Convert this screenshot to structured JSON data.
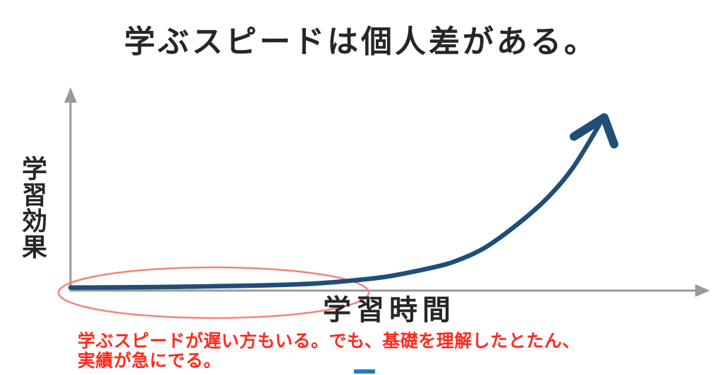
{
  "title": "学ぶスピードは個人差がある。",
  "chart_data": {
    "type": "line",
    "title": "学ぶスピードは個人差がある。",
    "xlabel": "学習時間",
    "ylabel": "学習効果",
    "axis_ticks": "none",
    "grid": false,
    "legend": "none",
    "xlim": [
      0,
      1
    ],
    "ylim": [
      0,
      1
    ],
    "x": [
      0,
      0.08,
      0.16,
      0.24,
      0.32,
      0.4,
      0.47,
      0.54,
      0.6,
      0.66,
      0.72,
      0.78,
      0.84,
      0.9,
      0.95,
      1.0
    ],
    "series": [
      {
        "name": "learning-effect-curve",
        "values": [
          0.005,
          0.006,
          0.008,
          0.011,
          0.015,
          0.021,
          0.03,
          0.048,
          0.07,
          0.105,
          0.15,
          0.23,
          0.36,
          0.52,
          0.7,
          0.95
        ]
      }
    ],
    "annotations": [
      {
        "type": "ellipse-highlight",
        "x_range": [
          0,
          0.56
        ],
        "note": "flat initial region circled in red"
      },
      {
        "type": "arrowhead",
        "at": "curve-end",
        "direction": "up-right"
      }
    ]
  },
  "note": {
    "line1": "学ぶスピードが遅い方もいる。でも、基礎を理解したとたん、",
    "line2": "実績が急にでる。"
  },
  "colors": {
    "background": "#ffffff",
    "curve": "#1f4e79",
    "axis": "#9a9a9a",
    "ellipse": "#f2837b",
    "text": "#262626",
    "note_text": "#ff2a1e",
    "dash": "#1b7ec2"
  }
}
